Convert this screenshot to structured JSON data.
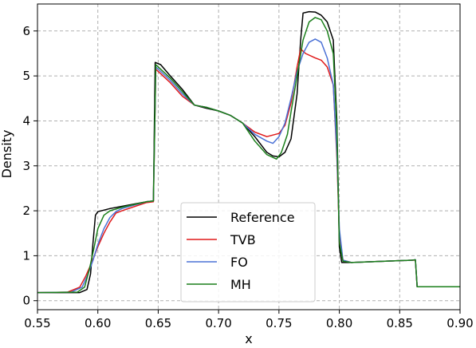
{
  "chart_data": {
    "type": "line",
    "title": "",
    "xlabel": "x",
    "ylabel": "Density",
    "xlim": [
      0.55,
      0.9
    ],
    "ylim": [
      -0.2,
      6.6
    ],
    "grid": true,
    "legend_position": "bottom-center",
    "x_ticks": [
      "0.55",
      "0.60",
      "0.65",
      "0.70",
      "0.75",
      "0.80",
      "0.85",
      "0.90"
    ],
    "y_ticks": [
      "0",
      "1",
      "2",
      "3",
      "4",
      "5",
      "6"
    ],
    "series": [
      {
        "name": "Reference",
        "color": "#000000",
        "points": [
          [
            0.55,
            0.18
          ],
          [
            0.585,
            0.18
          ],
          [
            0.591,
            0.25
          ],
          [
            0.594,
            0.6
          ],
          [
            0.596,
            1.3
          ],
          [
            0.598,
            1.9
          ],
          [
            0.6,
            1.98
          ],
          [
            0.61,
            2.05
          ],
          [
            0.62,
            2.1
          ],
          [
            0.64,
            2.2
          ],
          [
            0.646,
            2.22
          ],
          [
            0.6475,
            5.3
          ],
          [
            0.652,
            5.25
          ],
          [
            0.66,
            5.0
          ],
          [
            0.67,
            4.7
          ],
          [
            0.68,
            4.35
          ],
          [
            0.69,
            4.28
          ],
          [
            0.7,
            4.22
          ],
          [
            0.71,
            4.12
          ],
          [
            0.72,
            3.95
          ],
          [
            0.73,
            3.65
          ],
          [
            0.74,
            3.3
          ],
          [
            0.745,
            3.22
          ],
          [
            0.75,
            3.2
          ],
          [
            0.755,
            3.3
          ],
          [
            0.76,
            3.6
          ],
          [
            0.765,
            4.6
          ],
          [
            0.768,
            5.8
          ],
          [
            0.77,
            6.4
          ],
          [
            0.775,
            6.43
          ],
          [
            0.78,
            6.42
          ],
          [
            0.785,
            6.35
          ],
          [
            0.79,
            6.2
          ],
          [
            0.795,
            5.8
          ],
          [
            0.798,
            4.0
          ],
          [
            0.8,
            1.2
          ],
          [
            0.802,
            0.85
          ],
          [
            0.81,
            0.85
          ],
          [
            0.86,
            0.9
          ],
          [
            0.863,
            0.91
          ],
          [
            0.8645,
            0.31
          ],
          [
            0.9,
            0.31
          ]
        ]
      },
      {
        "name": "TVB",
        "color": "#e01a1a",
        "points": [
          [
            0.55,
            0.18
          ],
          [
            0.575,
            0.19
          ],
          [
            0.585,
            0.3
          ],
          [
            0.59,
            0.55
          ],
          [
            0.595,
            0.85
          ],
          [
            0.6,
            1.2
          ],
          [
            0.605,
            1.5
          ],
          [
            0.61,
            1.75
          ],
          [
            0.615,
            1.95
          ],
          [
            0.62,
            2.0
          ],
          [
            0.64,
            2.18
          ],
          [
            0.646,
            2.2
          ],
          [
            0.648,
            5.15
          ],
          [
            0.652,
            5.05
          ],
          [
            0.66,
            4.85
          ],
          [
            0.67,
            4.55
          ],
          [
            0.68,
            4.35
          ],
          [
            0.69,
            4.3
          ],
          [
            0.7,
            4.22
          ],
          [
            0.71,
            4.12
          ],
          [
            0.72,
            3.95
          ],
          [
            0.73,
            3.75
          ],
          [
            0.74,
            3.65
          ],
          [
            0.75,
            3.72
          ],
          [
            0.755,
            3.9
          ],
          [
            0.76,
            4.4
          ],
          [
            0.765,
            5.2
          ],
          [
            0.768,
            5.6
          ],
          [
            0.772,
            5.5
          ],
          [
            0.78,
            5.4
          ],
          [
            0.785,
            5.35
          ],
          [
            0.79,
            5.2
          ],
          [
            0.795,
            4.8
          ],
          [
            0.798,
            3.2
          ],
          [
            0.8,
            1.5
          ],
          [
            0.803,
            0.9
          ],
          [
            0.81,
            0.85
          ],
          [
            0.86,
            0.9
          ],
          [
            0.863,
            0.9
          ],
          [
            0.8645,
            0.31
          ],
          [
            0.9,
            0.31
          ]
        ]
      },
      {
        "name": "FO",
        "color": "#4c72d6",
        "points": [
          [
            0.55,
            0.18
          ],
          [
            0.578,
            0.19
          ],
          [
            0.587,
            0.3
          ],
          [
            0.592,
            0.6
          ],
          [
            0.596,
            0.9
          ],
          [
            0.6,
            1.25
          ],
          [
            0.605,
            1.6
          ],
          [
            0.61,
            1.85
          ],
          [
            0.615,
            1.98
          ],
          [
            0.62,
            2.05
          ],
          [
            0.64,
            2.2
          ],
          [
            0.646,
            2.22
          ],
          [
            0.648,
            5.2
          ],
          [
            0.652,
            5.1
          ],
          [
            0.66,
            4.9
          ],
          [
            0.67,
            4.6
          ],
          [
            0.68,
            4.35
          ],
          [
            0.69,
            4.3
          ],
          [
            0.7,
            4.22
          ],
          [
            0.71,
            4.12
          ],
          [
            0.72,
            3.95
          ],
          [
            0.73,
            3.7
          ],
          [
            0.74,
            3.55
          ],
          [
            0.745,
            3.5
          ],
          [
            0.75,
            3.65
          ],
          [
            0.755,
            3.95
          ],
          [
            0.76,
            4.5
          ],
          [
            0.765,
            5.1
          ],
          [
            0.77,
            5.5
          ],
          [
            0.775,
            5.75
          ],
          [
            0.78,
            5.82
          ],
          [
            0.785,
            5.75
          ],
          [
            0.79,
            5.4
          ],
          [
            0.795,
            4.8
          ],
          [
            0.798,
            3.3
          ],
          [
            0.8,
            1.6
          ],
          [
            0.803,
            0.9
          ],
          [
            0.81,
            0.85
          ],
          [
            0.86,
            0.9
          ],
          [
            0.863,
            0.91
          ],
          [
            0.8645,
            0.31
          ],
          [
            0.9,
            0.31
          ]
        ]
      },
      {
        "name": "MH",
        "color": "#1a7f1a",
        "points": [
          [
            0.55,
            0.18
          ],
          [
            0.583,
            0.19
          ],
          [
            0.589,
            0.3
          ],
          [
            0.593,
            0.7
          ],
          [
            0.597,
            1.2
          ],
          [
            0.6,
            1.6
          ],
          [
            0.605,
            1.9
          ],
          [
            0.61,
            2.0
          ],
          [
            0.62,
            2.08
          ],
          [
            0.64,
            2.2
          ],
          [
            0.646,
            2.22
          ],
          [
            0.648,
            5.25
          ],
          [
            0.652,
            5.15
          ],
          [
            0.66,
            4.95
          ],
          [
            0.67,
            4.65
          ],
          [
            0.68,
            4.35
          ],
          [
            0.69,
            4.3
          ],
          [
            0.7,
            4.22
          ],
          [
            0.71,
            4.12
          ],
          [
            0.72,
            3.95
          ],
          [
            0.73,
            3.55
          ],
          [
            0.74,
            3.25
          ],
          [
            0.748,
            3.15
          ],
          [
            0.752,
            3.3
          ],
          [
            0.757,
            3.7
          ],
          [
            0.76,
            4.2
          ],
          [
            0.765,
            5.0
          ],
          [
            0.77,
            5.8
          ],
          [
            0.775,
            6.2
          ],
          [
            0.78,
            6.3
          ],
          [
            0.785,
            6.25
          ],
          [
            0.79,
            6.0
          ],
          [
            0.795,
            5.5
          ],
          [
            0.798,
            3.8
          ],
          [
            0.8,
            1.3
          ],
          [
            0.803,
            0.88
          ],
          [
            0.81,
            0.85
          ],
          [
            0.86,
            0.9
          ],
          [
            0.863,
            0.91
          ],
          [
            0.8645,
            0.31
          ],
          [
            0.9,
            0.31
          ]
        ]
      }
    ]
  }
}
